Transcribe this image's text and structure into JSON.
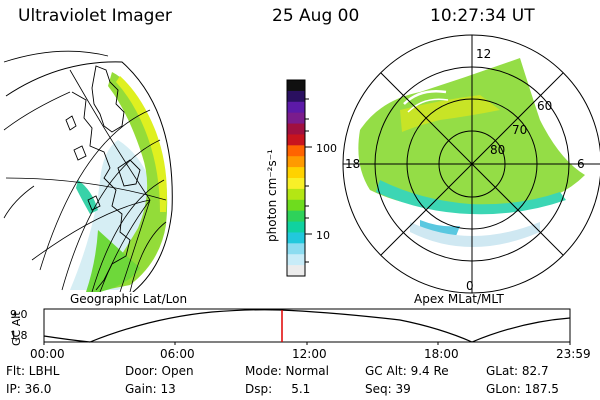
{
  "header": {
    "instrument": "Ultraviolet Imager",
    "date": "25 Aug 00",
    "time": "10:27:34 UT"
  },
  "colorbar": {
    "label": "photon cm⁻²s⁻¹",
    "ticks": [
      "100",
      "10"
    ],
    "colors": [
      "#101010",
      "#2a1060",
      "#5c1aa8",
      "#7a1c8c",
      "#a01040",
      "#c8141e",
      "#ff6400",
      "#ff9a00",
      "#ffd200",
      "#f8f028",
      "#b4e614",
      "#6edc1e",
      "#2ed25a",
      "#10d2a0",
      "#22c8dc",
      "#8cdcf0",
      "#c8ecf8",
      "#ececec"
    ]
  },
  "geo_map": {
    "label": "Geographic Lat/Lon"
  },
  "polar_plot": {
    "label": "Apex MLat/MLT",
    "mlt_labels": [
      "12",
      "18",
      "6",
      "0"
    ],
    "lat_labels": [
      "60",
      "70",
      "80"
    ]
  },
  "altitude_plot": {
    "axis_label": "GC Alt",
    "y_ticks": [
      "9.0",
      "1.8"
    ],
    "x_ticks": [
      "00:00",
      "06:00",
      "12:00",
      "18:00",
      "23:59"
    ],
    "marker_color": "#e00000"
  },
  "info": {
    "filter": "Flt: LBHL",
    "door": "Door: Open",
    "mode": "Mode: Normal",
    "gc_alt": "GC Alt: 9.4 Re",
    "glat": "GLat: 82.7",
    "ip": "IP: 36.0",
    "gain": "Gain: 13",
    "dsp": "Dsp:     5.1",
    "seq": "Seq: 39",
    "glon": "GLon: 187.5"
  }
}
